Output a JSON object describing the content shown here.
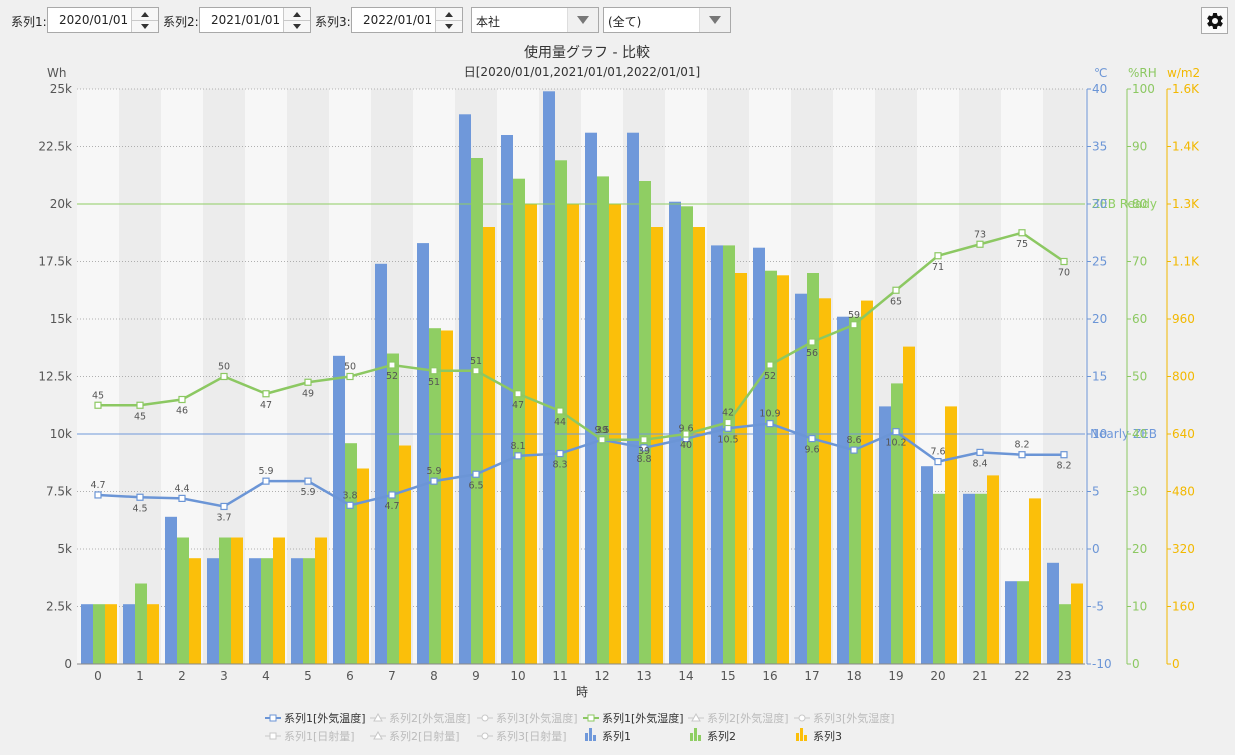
{
  "toolbar": {
    "series1_label": "系列1:",
    "series1_date": "2020/01/01",
    "series2_label": "系列2:",
    "series2_date": "2021/01/01",
    "series3_label": "系列3:",
    "series3_date": "2022/01/01",
    "location_select": "本社",
    "filter_select": "(全て)",
    "settings_icon": "gear-icon"
  },
  "chart_data": {
    "type": "bar",
    "title": "使用量グラフ - 比較",
    "subtitle": "日[2020/01/01,2021/01/01,2022/01/01]",
    "xlabel": "時",
    "categories": [
      "0",
      "1",
      "2",
      "3",
      "4",
      "5",
      "6",
      "7",
      "8",
      "9",
      "10",
      "11",
      "12",
      "13",
      "14",
      "15",
      "16",
      "17",
      "18",
      "19",
      "20",
      "21",
      "22",
      "23"
    ],
    "axes": {
      "left": {
        "unit": "Wh",
        "range": [
          0,
          25000
        ],
        "ticks": [
          "0",
          "2.5k",
          "5k",
          "7.5k",
          "10k",
          "12.5k",
          "15k",
          "17.5k",
          "20k",
          "22.5k",
          "25k"
        ],
        "color": "#555555"
      },
      "temp": {
        "unit": "℃",
        "range": [
          -10,
          40
        ],
        "ticks": [
          "-10",
          "-5",
          "0",
          "5",
          "10",
          "15",
          "20",
          "25",
          "30",
          "35",
          "40"
        ],
        "color": "#6b95d6"
      },
      "humidity": {
        "unit": "%RH",
        "range": [
          0,
          100
        ],
        "ticks": [
          "0",
          "10",
          "20",
          "30",
          "40",
          "50",
          "60",
          "70",
          "80",
          "90",
          "100"
        ],
        "color": "#8cc862"
      },
      "solar": {
        "unit": "w/m2",
        "range": [
          0,
          1600
        ],
        "ticks": [
          "0",
          "160",
          "320",
          "480",
          "640",
          "800",
          "960",
          "1.1K",
          "1.3K",
          "1.4K",
          "1.6K"
        ],
        "color": "#f2b800"
      }
    },
    "series": [
      {
        "name": "系列1",
        "type": "bar",
        "axis": "left",
        "color": "#6f98da",
        "values": [
          2600,
          2600,
          6400,
          4600,
          4600,
          4600,
          13400,
          17400,
          18300,
          23900,
          23000,
          24900,
          23100,
          23100,
          20100,
          18200,
          18100,
          16100,
          15100,
          11200,
          8600,
          7400,
          3600,
          4400
        ]
      },
      {
        "name": "系列2",
        "type": "bar",
        "axis": "left",
        "color": "#8fce63",
        "values": [
          2600,
          3500,
          5500,
          5500,
          4600,
          4600,
          9600,
          13500,
          14600,
          22000,
          21100,
          21900,
          21200,
          21000,
          19900,
          18200,
          17100,
          17000,
          15100,
          12200,
          7400,
          7400,
          3600,
          2600
        ]
      },
      {
        "name": "系列3",
        "type": "bar",
        "axis": "left",
        "color": "#fbbf0a",
        "values": [
          2600,
          2600,
          4600,
          5500,
          5500,
          5500,
          8500,
          9500,
          14500,
          19000,
          20000,
          20000,
          20000,
          19000,
          19000,
          17000,
          16900,
          15900,
          15800,
          13800,
          11200,
          8200,
          7200,
          3500
        ]
      },
      {
        "name": "系列1[外気温度]",
        "type": "line",
        "axis": "temp",
        "color": "#6b95d6",
        "values": [
          4.7,
          4.5,
          4.4,
          3.7,
          5.9,
          5.9,
          3.8,
          4.7,
          5.9,
          6.5,
          8.1,
          8.3,
          9.5,
          8.8,
          9.6,
          10.5,
          10.9,
          9.6,
          8.6,
          10.2,
          7.6,
          8.4,
          8.2,
          8.2
        ],
        "labels": [
          "4.7",
          "4.5",
          "4.4",
          "3.7",
          "5.9",
          "5.9",
          "3.8",
          "4.7",
          "5.9",
          "6.5",
          "8.1",
          "8.3",
          "9.5",
          "8.8",
          "9.6",
          "10.5",
          "10.9",
          "9.6",
          "8.6",
          "10.2",
          "7.6",
          "8.4",
          "8.2",
          "8.2"
        ]
      },
      {
        "name": "系列1[外気湿度]",
        "type": "line",
        "axis": "humidity",
        "color": "#8cc862",
        "values": [
          45,
          45,
          46,
          50,
          47,
          49,
          50,
          52,
          51,
          51,
          47,
          44,
          39,
          39,
          40,
          42,
          52,
          56,
          59,
          65,
          71,
          73,
          75,
          70
        ],
        "labels": [
          "45",
          "45",
          "46",
          "50",
          "47",
          "49",
          "50",
          "52",
          "51",
          "51",
          "47",
          "44",
          "39",
          "39",
          "40",
          "42",
          "52",
          "56",
          "59",
          "65",
          "71",
          "73",
          "75",
          "70"
        ]
      }
    ],
    "reference_lines": [
      {
        "label": "ZEB Ready",
        "value": 20000,
        "color": "#8fce63"
      },
      {
        "label": "Nearly ZEB",
        "value": 10000,
        "color": "#6f98da"
      }
    ],
    "legend": {
      "position": "bottom",
      "items": [
        {
          "label": "系列1[外気温度]",
          "active": true,
          "kind": "line-square",
          "color": "#6b95d6"
        },
        {
          "label": "系列2[外気温度]",
          "active": false,
          "kind": "line-triangle"
        },
        {
          "label": "系列3[外気温度]",
          "active": false,
          "kind": "line-circle"
        },
        {
          "label": "系列1[外気湿度]",
          "active": true,
          "kind": "line-square",
          "color": "#8cc862"
        },
        {
          "label": "系列2[外気湿度]",
          "active": false,
          "kind": "line-triangle"
        },
        {
          "label": "系列3[外気湿度]",
          "active": false,
          "kind": "line-circle"
        },
        {
          "label": "系列1[日射量]",
          "active": false,
          "kind": "line-square"
        },
        {
          "label": "系列2[日射量]",
          "active": false,
          "kind": "line-triangle"
        },
        {
          "label": "系列3[日射量]",
          "active": false,
          "kind": "line-circle"
        },
        {
          "label": "系列1",
          "active": true,
          "kind": "bar",
          "color": "#6f98da"
        },
        {
          "label": "系列2",
          "active": true,
          "kind": "bar",
          "color": "#8fce63"
        },
        {
          "label": "系列3",
          "active": true,
          "kind": "bar",
          "color": "#fbbf0a"
        }
      ]
    }
  }
}
